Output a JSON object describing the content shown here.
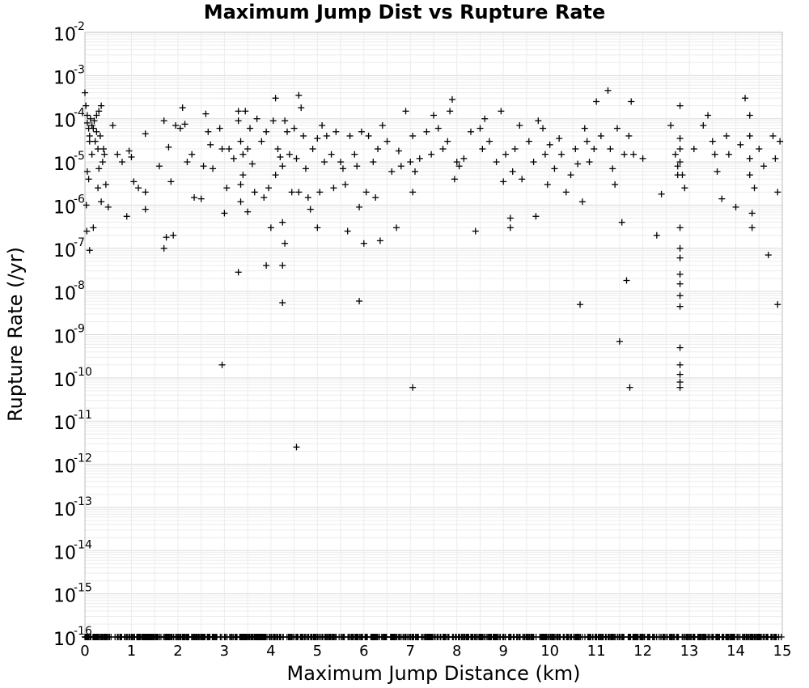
{
  "chart_data": {
    "type": "scatter",
    "title": "Maximum Jump Dist vs Rupture Rate",
    "xlabel": "Maximum Jump Distance (km)",
    "ylabel": "Rupture Rate (/yr)",
    "xlim": [
      0,
      15
    ],
    "ylim": [
      1e-16,
      0.01
    ],
    "yscale": "log",
    "grid": true,
    "marker": "plus",
    "x_ticks": [
      "0",
      "1",
      "2",
      "3",
      "4",
      "5",
      "6",
      "7",
      "8",
      "9",
      "10",
      "11",
      "12",
      "13",
      "14",
      "15"
    ],
    "y_ticks": [
      {
        "base": "10",
        "exp": "-2"
      },
      {
        "base": "10",
        "exp": "-3"
      },
      {
        "base": "10",
        "exp": "-4"
      },
      {
        "base": "10",
        "exp": "-5"
      },
      {
        "base": "10",
        "exp": "-6"
      },
      {
        "base": "10",
        "exp": "-7"
      },
      {
        "base": "10",
        "exp": "-8"
      },
      {
        "base": "10",
        "exp": "-9"
      },
      {
        "base": "10",
        "exp": "-10"
      },
      {
        "base": "10",
        "exp": "-11"
      },
      {
        "base": "10",
        "exp": "-12"
      },
      {
        "base": "10",
        "exp": "-13"
      },
      {
        "base": "10",
        "exp": "-14"
      },
      {
        "base": "10",
        "exp": "-15"
      },
      {
        "base": "10",
        "exp": "-16"
      }
    ],
    "series": [
      {
        "points": [
          [
            0.0,
            0.0004
          ],
          [
            0.02,
            0.0002
          ],
          [
            0.05,
            0.00012
          ],
          [
            0.05,
            8e-05
          ],
          [
            0.08,
            6e-05
          ],
          [
            0.1,
            4e-05
          ],
          [
            0.1,
            3e-05
          ],
          [
            0.12,
            0.0001
          ],
          [
            0.15,
            7e-05
          ],
          [
            0.15,
            1.5e-05
          ],
          [
            0.18,
            6e-05
          ],
          [
            0.2,
            9e-05
          ],
          [
            0.22,
            3e-05
          ],
          [
            0.25,
            0.00012
          ],
          [
            0.25,
            5e-05
          ],
          [
            0.28,
            2e-05
          ],
          [
            0.3,
            0.00015
          ],
          [
            0.3,
            7e-06
          ],
          [
            0.33,
            4e-05
          ],
          [
            0.35,
            0.0002
          ],
          [
            0.38,
            1e-05
          ],
          [
            0.4,
            2e-05
          ],
          [
            0.42,
            1.5e-05
          ],
          [
            0.45,
            3e-06
          ],
          [
            0.05,
            6e-06
          ],
          [
            0.08,
            4e-06
          ],
          [
            0.03,
            1e-06
          ],
          [
            0.04,
            2.5e-07
          ],
          [
            0.1,
            9e-08
          ],
          [
            0.18,
            3e-07
          ],
          [
            0.28,
            2.5e-06
          ],
          [
            0.35,
            1.2e-06
          ],
          [
            0.5,
            9e-07
          ],
          [
            0.6,
            7e-05
          ],
          [
            0.7,
            1.5e-05
          ],
          [
            0.8,
            1e-05
          ],
          [
            0.9,
            5.5e-07
          ],
          [
            0.95,
            1.8e-05
          ],
          [
            1.0,
            1.3e-05
          ],
          [
            1.05,
            3.5e-06
          ],
          [
            1.15,
            2.5e-06
          ],
          [
            1.3,
            4.5e-05
          ],
          [
            1.3,
            8e-07
          ],
          [
            1.3,
            2e-06
          ],
          [
            1.6,
            8e-06
          ],
          [
            1.7,
            9e-05
          ],
          [
            1.7,
            1e-07
          ],
          [
            1.75,
            1.8e-07
          ],
          [
            1.8,
            2.2e-05
          ],
          [
            1.85,
            3.5e-06
          ],
          [
            1.9,
            2e-07
          ],
          [
            1.95,
            7e-05
          ],
          [
            2.05,
            6e-05
          ],
          [
            2.1,
            0.00018
          ],
          [
            2.15,
            7.5e-05
          ],
          [
            2.2,
            1e-05
          ],
          [
            2.3,
            1.5e-05
          ],
          [
            2.35,
            1.5e-06
          ],
          [
            2.5,
            1.4e-06
          ],
          [
            2.55,
            8e-06
          ],
          [
            2.6,
            0.00013
          ],
          [
            2.65,
            5e-05
          ],
          [
            2.7,
            2.5e-05
          ],
          [
            2.75,
            7e-06
          ],
          [
            2.9,
            6e-05
          ],
          [
            2.95,
            2e-05
          ],
          [
            3.0,
            6.5e-07
          ],
          [
            3.05,
            2.5e-06
          ],
          [
            3.1,
            2e-05
          ],
          [
            3.2,
            1.2e-05
          ],
          [
            3.3,
            0.00015
          ],
          [
            3.3,
            9e-05
          ],
          [
            3.35,
            3e-05
          ],
          [
            3.35,
            3e-06
          ],
          [
            3.35,
            1.2e-06
          ],
          [
            3.4,
            1.5e-05
          ],
          [
            3.4,
            5e-06
          ],
          [
            3.45,
            0.00015
          ],
          [
            3.5,
            2e-05
          ],
          [
            3.5,
            7e-07
          ],
          [
            3.55,
            6e-05
          ],
          [
            3.6,
            9e-06
          ],
          [
            3.65,
            2e-06
          ],
          [
            3.7,
            0.0001
          ],
          [
            3.8,
            3e-05
          ],
          [
            3.85,
            1.5e-06
          ],
          [
            3.9,
            5e-05
          ],
          [
            3.95,
            2.5e-06
          ],
          [
            4.0,
            3e-07
          ],
          [
            4.05,
            9e-05
          ],
          [
            4.1,
            0.0003
          ],
          [
            4.1,
            5e-06
          ],
          [
            4.15,
            2e-05
          ],
          [
            4.2,
            1.3e-05
          ],
          [
            4.25,
            4e-07
          ],
          [
            4.25,
            8e-06
          ],
          [
            4.3,
            9e-05
          ],
          [
            4.3,
            1.3e-07
          ],
          [
            4.35,
            5e-05
          ],
          [
            4.4,
            1.5e-05
          ],
          [
            4.45,
            2e-06
          ],
          [
            4.5,
            6e-05
          ],
          [
            4.55,
            1.2e-05
          ],
          [
            4.6,
            0.00035
          ],
          [
            4.6,
            2e-06
          ],
          [
            4.65,
            0.00018
          ],
          [
            4.7,
            4e-05
          ],
          [
            4.75,
            7e-06
          ],
          [
            4.8,
            1.5e-06
          ],
          [
            4.85,
            8e-07
          ],
          [
            4.9,
            2e-05
          ],
          [
            5.0,
            3.5e-05
          ],
          [
            5.0,
            3e-07
          ],
          [
            5.05,
            2e-06
          ],
          [
            5.1,
            7e-05
          ],
          [
            5.15,
            1e-05
          ],
          [
            5.2,
            4e-05
          ],
          [
            5.3,
            1.5e-05
          ],
          [
            5.35,
            2.5e-06
          ],
          [
            5.4,
            5e-05
          ],
          [
            5.5,
            1e-05
          ],
          [
            5.55,
            7e-06
          ],
          [
            5.6,
            3e-06
          ],
          [
            5.65,
            2.5e-07
          ],
          [
            5.7,
            4e-05
          ],
          [
            5.8,
            1.5e-05
          ],
          [
            5.85,
            8e-06
          ],
          [
            5.9,
            9e-07
          ],
          [
            5.95,
            5e-05
          ],
          [
            6.0,
            1.3e-07
          ],
          [
            6.05,
            2e-06
          ],
          [
            6.1,
            4e-05
          ],
          [
            6.2,
            1e-05
          ],
          [
            6.25,
            1.5e-06
          ],
          [
            6.3,
            2e-05
          ],
          [
            6.35,
            1.5e-07
          ],
          [
            6.4,
            7e-05
          ],
          [
            6.5,
            3e-05
          ],
          [
            6.6,
            6e-06
          ],
          [
            6.7,
            3e-07
          ],
          [
            6.75,
            1.8e-05
          ],
          [
            6.8,
            8e-06
          ],
          [
            6.9,
            0.00015
          ],
          [
            7.0,
            1e-05
          ],
          [
            7.05,
            4e-05
          ],
          [
            7.05,
            2e-06
          ],
          [
            7.1,
            6e-06
          ],
          [
            7.2,
            1.2e-05
          ],
          [
            7.35,
            5e-05
          ],
          [
            7.45,
            1.5e-05
          ],
          [
            7.5,
            0.00012
          ],
          [
            7.6,
            6e-05
          ],
          [
            7.7,
            2e-05
          ],
          [
            7.8,
            3e-05
          ],
          [
            7.85,
            0.00015
          ],
          [
            7.9,
            0.00028
          ],
          [
            7.95,
            4e-06
          ],
          [
            8.0,
            1e-05
          ],
          [
            8.05,
            8e-06
          ],
          [
            8.15,
            1.2e-05
          ],
          [
            8.3,
            5e-05
          ],
          [
            8.4,
            2.5e-07
          ],
          [
            8.5,
            6e-05
          ],
          [
            8.55,
            2e-05
          ],
          [
            8.6,
            0.0001
          ],
          [
            8.7,
            3e-05
          ],
          [
            8.85,
            1e-05
          ],
          [
            8.95,
            0.00015
          ],
          [
            9.0,
            3.5e-06
          ],
          [
            9.05,
            1.5e-05
          ],
          [
            9.15,
            5e-07
          ],
          [
            9.15,
            3e-07
          ],
          [
            9.2,
            6e-06
          ],
          [
            9.25,
            2e-05
          ],
          [
            9.35,
            7e-05
          ],
          [
            9.4,
            4e-06
          ],
          [
            9.55,
            3e-05
          ],
          [
            9.65,
            1e-05
          ],
          [
            9.7,
            5.5e-07
          ],
          [
            9.75,
            9e-05
          ],
          [
            9.85,
            6e-05
          ],
          [
            9.9,
            1.5e-05
          ],
          [
            9.95,
            3e-06
          ],
          [
            10.0,
            2.5e-05
          ],
          [
            10.1,
            7e-06
          ],
          [
            10.2,
            3.5e-05
          ],
          [
            10.25,
            1.5e-05
          ],
          [
            10.35,
            2e-06
          ],
          [
            10.45,
            5e-06
          ],
          [
            10.55,
            2e-05
          ],
          [
            10.6,
            9e-06
          ],
          [
            10.65,
            5e-09
          ],
          [
            10.7,
            1.2e-06
          ],
          [
            10.75,
            6e-05
          ],
          [
            10.8,
            3e-05
          ],
          [
            10.85,
            1e-05
          ],
          [
            10.95,
            2e-05
          ],
          [
            11.0,
            0.00025
          ],
          [
            11.1,
            4e-05
          ],
          [
            11.25,
            0.00045
          ],
          [
            11.3,
            2e-05
          ],
          [
            11.35,
            7e-06
          ],
          [
            11.4,
            3e-06
          ],
          [
            11.45,
            6e-05
          ],
          [
            11.5,
            7e-10
          ],
          [
            11.55,
            4e-07
          ],
          [
            11.6,
            1.5e-05
          ],
          [
            11.65,
            1.8e-08
          ],
          [
            11.7,
            4e-05
          ],
          [
            11.72,
            6e-11
          ],
          [
            11.75,
            0.00025
          ],
          [
            11.8,
            1.5e-05
          ],
          [
            12.0,
            1.2e-05
          ],
          [
            12.3,
            2e-07
          ],
          [
            12.4,
            1.8e-06
          ],
          [
            12.6,
            7e-05
          ],
          [
            12.7,
            1.5e-05
          ],
          [
            12.75,
            8e-06
          ],
          [
            12.75,
            5e-06
          ],
          [
            12.8,
            0.0002
          ],
          [
            12.8,
            3e-07
          ],
          [
            12.8,
            1e-07
          ],
          [
            12.8,
            6e-08
          ],
          [
            12.8,
            2.5e-08
          ],
          [
            12.8,
            1.5e-08
          ],
          [
            12.8,
            8e-09
          ],
          [
            12.8,
            4.5e-09
          ],
          [
            12.8,
            5e-10
          ],
          [
            12.8,
            2e-10
          ],
          [
            12.8,
            1.2e-10
          ],
          [
            12.8,
            8e-11
          ],
          [
            12.8,
            6e-11
          ],
          [
            12.8,
            3.5e-05
          ],
          [
            12.8,
            2e-05
          ],
          [
            12.8,
            1e-05
          ],
          [
            12.85,
            5e-06
          ],
          [
            12.9,
            2.5e-06
          ],
          [
            13.1,
            2e-05
          ],
          [
            13.3,
            7e-05
          ],
          [
            13.4,
            0.00012
          ],
          [
            13.5,
            3e-05
          ],
          [
            13.55,
            1.5e-05
          ],
          [
            13.6,
            6e-06
          ],
          [
            13.7,
            1.4e-06
          ],
          [
            13.8,
            4e-05
          ],
          [
            13.85,
            1.5e-05
          ],
          [
            14.0,
            9e-07
          ],
          [
            14.1,
            2.5e-05
          ],
          [
            14.2,
            0.0003
          ],
          [
            14.3,
            0.00012
          ],
          [
            14.3,
            4e-05
          ],
          [
            14.3,
            1.2e-05
          ],
          [
            14.3,
            5e-06
          ],
          [
            14.35,
            3e-07
          ],
          [
            14.35,
            6.5e-07
          ],
          [
            14.4,
            2.5e-06
          ],
          [
            14.5,
            2e-05
          ],
          [
            14.6,
            8e-06
          ],
          [
            14.7,
            7e-08
          ],
          [
            14.8,
            4e-05
          ],
          [
            14.85,
            1.2e-05
          ],
          [
            14.9,
            5e-09
          ],
          [
            14.9,
            2e-06
          ],
          [
            14.95,
            3e-05
          ],
          [
            3.3,
            2.8e-08
          ],
          [
            2.95,
            2e-10
          ],
          [
            4.55,
            2.5e-12
          ],
          [
            7.05,
            6e-11
          ],
          [
            5.9,
            6e-09
          ],
          [
            4.25,
            5.5e-09
          ],
          [
            3.9,
            4e-08
          ],
          [
            4.25,
            4e-08
          ]
        ]
      }
    ]
  }
}
